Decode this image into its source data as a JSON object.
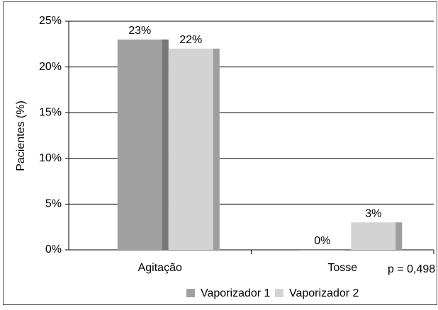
{
  "chart_data": {
    "type": "bar",
    "y_label": "Pacientes (%)",
    "categories": [
      "Agitação",
      "Tosse"
    ],
    "series": [
      {
        "name": "Vaporizador 1",
        "color": "#a0a0a0",
        "values": [
          23,
          0
        ],
        "value_labels": [
          "23%",
          "0%"
        ]
      },
      {
        "name": "Vaporizador 2",
        "color": "#d3d3d3",
        "values": [
          22,
          3
        ],
        "value_labels": [
          "22%",
          "3%"
        ]
      }
    ],
    "ylim": [
      0,
      25
    ],
    "yticks": [
      {
        "value": 0,
        "label": "0%"
      },
      {
        "value": 5,
        "label": "5%"
      },
      {
        "value": 10,
        "label": "10%"
      },
      {
        "value": 15,
        "label": "15%"
      },
      {
        "value": 20,
        "label": "20%"
      },
      {
        "value": 25,
        "label": "25%"
      }
    ],
    "grid": true,
    "annotation": "p = 0,498",
    "legend": "bottom"
  }
}
